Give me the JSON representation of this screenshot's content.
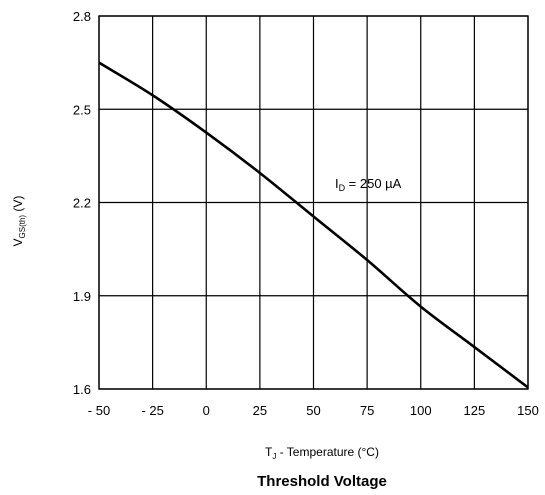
{
  "chart_data": {
    "type": "line",
    "title": "Threshold Voltage",
    "xlabel": {
      "main": "T",
      "sub": "J",
      "rest": " - Temperature (°C)"
    },
    "ylabel": {
      "main": "V",
      "sub": "GS(th)",
      "rest": " (V)"
    },
    "xlim": [
      -50,
      150
    ],
    "ylim": [
      1.6,
      2.8
    ],
    "x_ticks": [
      -50,
      -25,
      0,
      25,
      50,
      75,
      100,
      125,
      150
    ],
    "x_tick_labels": [
      "- 50",
      "- 25",
      "0",
      "25",
      "50",
      "75",
      "100",
      "125",
      "150"
    ],
    "y_ticks": [
      1.6,
      1.9,
      2.2,
      2.5,
      2.8
    ],
    "y_tick_labels": [
      "1.6",
      "1.9",
      "2.2",
      "2.5",
      "2.8"
    ],
    "grid": true,
    "series": [
      {
        "x": [
          -50,
          -25,
          0,
          25,
          50,
          75,
          100,
          125,
          150
        ],
        "y": [
          2.65,
          2.545,
          2.425,
          2.295,
          2.155,
          2.015,
          1.865,
          1.735,
          1.605
        ]
      }
    ],
    "annotations": [
      {
        "main": "I",
        "sub": "D",
        "rest": " = 250 µA",
        "x": 60,
        "y": 2.26
      }
    ],
    "colors": {
      "line": "#000000",
      "grid": "#000000"
    }
  }
}
